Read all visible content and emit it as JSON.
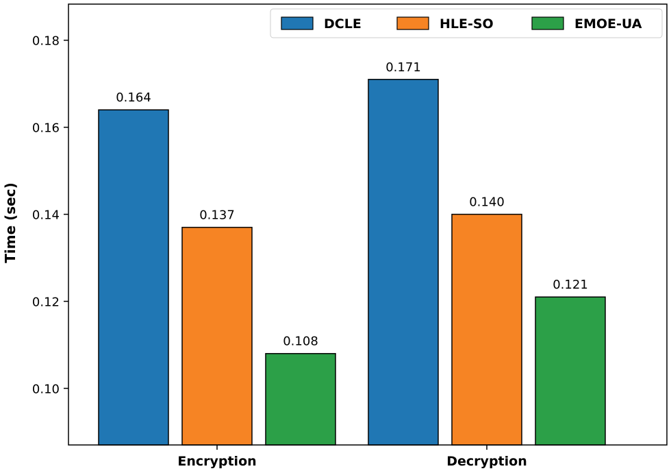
{
  "chart_data": {
    "type": "bar",
    "title": "",
    "xlabel": "",
    "ylabel": "Time (sec)",
    "categories": [
      "Encryption",
      "Decryption"
    ],
    "series": [
      {
        "name": "DCLE",
        "values": [
          0.164,
          0.171
        ],
        "labels": [
          "0.164",
          "0.171"
        ],
        "color": "#2077b4"
      },
      {
        "name": "HLE-SO",
        "values": [
          0.137,
          0.14
        ],
        "labels": [
          "0.137",
          "0.140"
        ],
        "color": "#f68424"
      },
      {
        "name": "EMOE-UA",
        "values": [
          0.108,
          0.121
        ],
        "labels": [
          "0.108",
          "0.121"
        ],
        "color": "#2ca048"
      }
    ],
    "yticks": [
      0.1,
      0.12,
      0.14,
      0.16,
      0.18
    ],
    "ytick_labels": [
      "0.10",
      "0.12",
      "0.14",
      "0.16",
      "0.18"
    ],
    "ylim": [
      0.087,
      0.1883
    ],
    "grid": false,
    "legend_position": "top-right"
  }
}
